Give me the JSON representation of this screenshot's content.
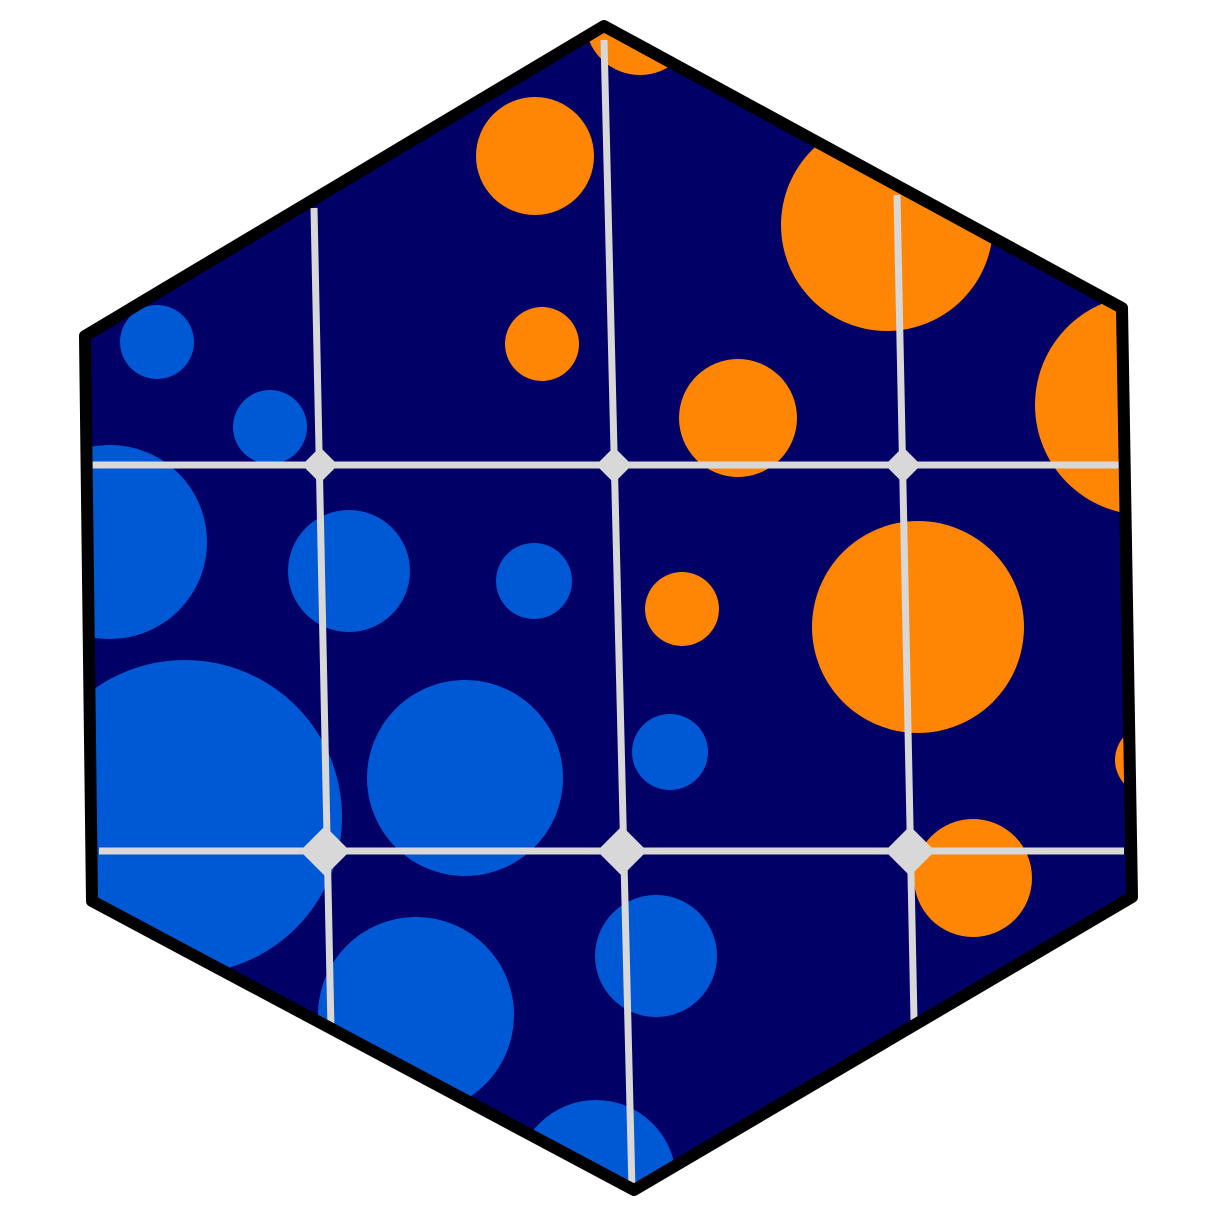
{
  "logo": {
    "shape": "hexagon",
    "colors": {
      "background": "#000066",
      "blue_dot": "#0059D4",
      "orange_dot": "#FF8505",
      "grid_line": "#D8D8D8",
      "outline": "#000000",
      "page": "#FFFFFF"
    },
    "dot_groups": [
      "blue",
      "orange"
    ],
    "grid": {
      "vertical_lines": 3,
      "horizontal_lines": 2,
      "nodes": 6
    }
  }
}
